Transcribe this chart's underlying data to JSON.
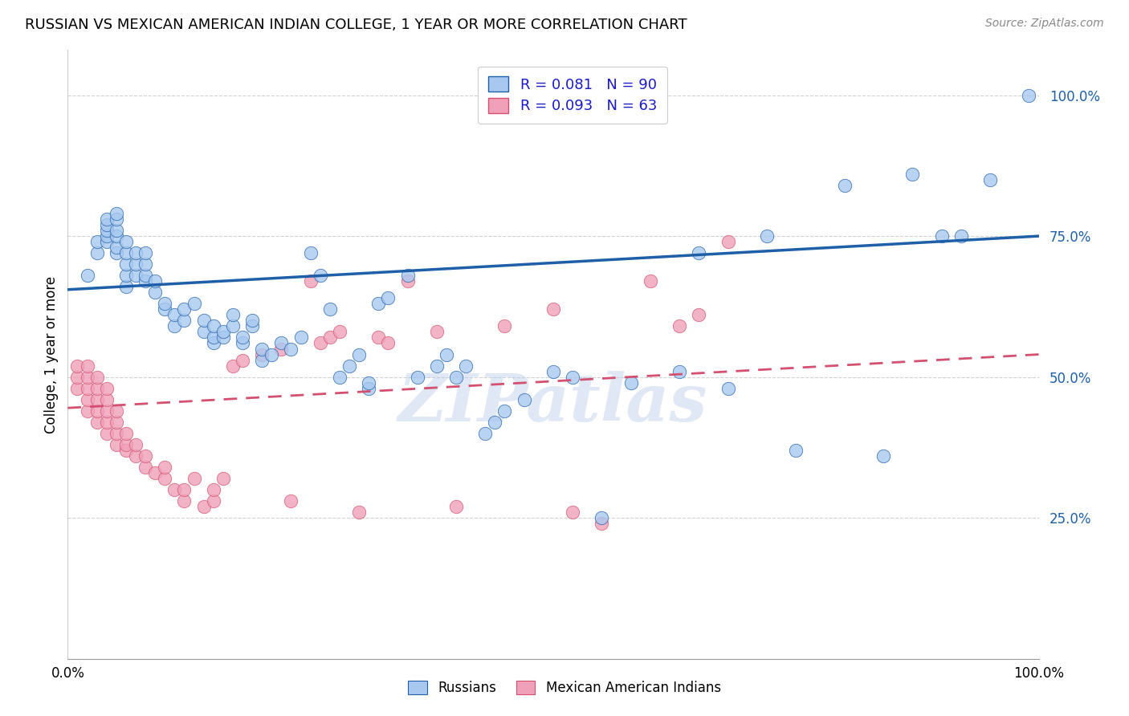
{
  "title": "RUSSIAN VS MEXICAN AMERICAN INDIAN COLLEGE, 1 YEAR OR MORE CORRELATION CHART",
  "source": "Source: ZipAtlas.com",
  "ylabel": "College, 1 year or more",
  "ytick_labels": [
    "25.0%",
    "50.0%",
    "75.0%",
    "100.0%"
  ],
  "ytick_values": [
    0.25,
    0.5,
    0.75,
    1.0
  ],
  "xlim": [
    0.0,
    1.0
  ],
  "ylim": [
    0.0,
    1.08
  ],
  "legend_entry1": "R = 0.081   N = 90",
  "legend_entry2": "R = 0.093   N = 63",
  "legend_label1": "Russians",
  "legend_label2": "Mexican American Indians",
  "color_blue": "#a8c8f0",
  "color_pink": "#f0a0b8",
  "line_color_blue": "#1E5FA8",
  "line_color_pink": "#D45070",
  "watermark": "ZIPatlas",
  "blue_intercept": 0.655,
  "blue_slope": 0.095,
  "pink_intercept": 0.445,
  "pink_slope": 0.095,
  "blue_x": [
    0.02,
    0.03,
    0.03,
    0.04,
    0.04,
    0.04,
    0.04,
    0.04,
    0.05,
    0.05,
    0.05,
    0.05,
    0.05,
    0.05,
    0.06,
    0.06,
    0.06,
    0.06,
    0.06,
    0.07,
    0.07,
    0.07,
    0.08,
    0.08,
    0.08,
    0.08,
    0.09,
    0.09,
    0.1,
    0.1,
    0.11,
    0.11,
    0.12,
    0.12,
    0.13,
    0.14,
    0.14,
    0.15,
    0.15,
    0.15,
    0.16,
    0.16,
    0.17,
    0.17,
    0.18,
    0.18,
    0.19,
    0.19,
    0.2,
    0.2,
    0.21,
    0.22,
    0.23,
    0.24,
    0.25,
    0.26,
    0.27,
    0.28,
    0.29,
    0.3,
    0.31,
    0.31,
    0.32,
    0.33,
    0.35,
    0.36,
    0.38,
    0.39,
    0.4,
    0.41,
    0.43,
    0.44,
    0.45,
    0.47,
    0.5,
    0.52,
    0.55,
    0.58,
    0.63,
    0.65,
    0.68,
    0.72,
    0.75,
    0.8,
    0.84,
    0.87,
    0.9,
    0.92,
    0.95,
    0.99
  ],
  "blue_y": [
    0.68,
    0.72,
    0.74,
    0.74,
    0.75,
    0.76,
    0.77,
    0.78,
    0.72,
    0.73,
    0.75,
    0.76,
    0.78,
    0.79,
    0.66,
    0.68,
    0.7,
    0.72,
    0.74,
    0.68,
    0.7,
    0.72,
    0.67,
    0.68,
    0.7,
    0.72,
    0.65,
    0.67,
    0.62,
    0.63,
    0.59,
    0.61,
    0.6,
    0.62,
    0.63,
    0.58,
    0.6,
    0.56,
    0.57,
    0.59,
    0.57,
    0.58,
    0.59,
    0.61,
    0.56,
    0.57,
    0.59,
    0.6,
    0.53,
    0.55,
    0.54,
    0.56,
    0.55,
    0.57,
    0.72,
    0.68,
    0.62,
    0.5,
    0.52,
    0.54,
    0.48,
    0.49,
    0.63,
    0.64,
    0.68,
    0.5,
    0.52,
    0.54,
    0.5,
    0.52,
    0.4,
    0.42,
    0.44,
    0.46,
    0.51,
    0.5,
    0.25,
    0.49,
    0.51,
    0.72,
    0.48,
    0.75,
    0.37,
    0.84,
    0.36,
    0.86,
    0.75,
    0.75,
    0.85,
    1.0
  ],
  "pink_x": [
    0.01,
    0.01,
    0.01,
    0.02,
    0.02,
    0.02,
    0.02,
    0.02,
    0.03,
    0.03,
    0.03,
    0.03,
    0.03,
    0.04,
    0.04,
    0.04,
    0.04,
    0.04,
    0.05,
    0.05,
    0.05,
    0.05,
    0.06,
    0.06,
    0.06,
    0.07,
    0.07,
    0.08,
    0.08,
    0.09,
    0.1,
    0.1,
    0.11,
    0.12,
    0.12,
    0.13,
    0.14,
    0.15,
    0.15,
    0.16,
    0.17,
    0.18,
    0.2,
    0.22,
    0.23,
    0.25,
    0.26,
    0.27,
    0.28,
    0.3,
    0.32,
    0.33,
    0.35,
    0.38,
    0.4,
    0.45,
    0.5,
    0.52,
    0.55,
    0.6,
    0.63,
    0.65,
    0.68
  ],
  "pink_y": [
    0.48,
    0.5,
    0.52,
    0.44,
    0.46,
    0.48,
    0.5,
    0.52,
    0.42,
    0.44,
    0.46,
    0.48,
    0.5,
    0.4,
    0.42,
    0.44,
    0.46,
    0.48,
    0.38,
    0.4,
    0.42,
    0.44,
    0.37,
    0.38,
    0.4,
    0.36,
    0.38,
    0.34,
    0.36,
    0.33,
    0.32,
    0.34,
    0.3,
    0.28,
    0.3,
    0.32,
    0.27,
    0.28,
    0.3,
    0.32,
    0.52,
    0.53,
    0.54,
    0.55,
    0.28,
    0.67,
    0.56,
    0.57,
    0.58,
    0.26,
    0.57,
    0.56,
    0.67,
    0.58,
    0.27,
    0.59,
    0.62,
    0.26,
    0.24,
    0.67,
    0.59,
    0.61,
    0.74
  ]
}
